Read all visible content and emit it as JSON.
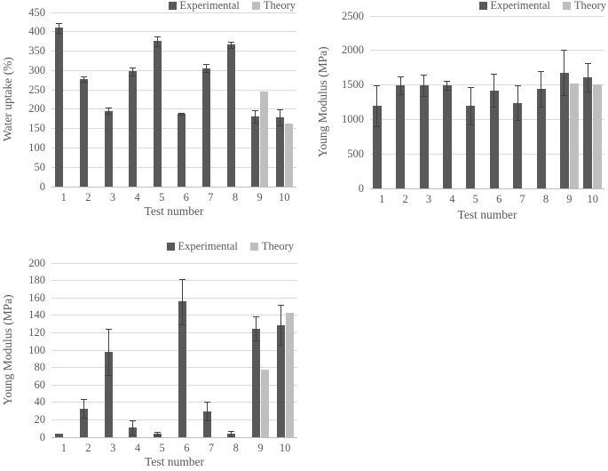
{
  "colors": {
    "experimental": "#595959",
    "theory": "#bfbfbf",
    "error_bar": "#404040",
    "gridline": "#d9d9d9",
    "axis_line": "#bfbfbf",
    "text": "#595959"
  },
  "chart_data": [
    {
      "type": "bar",
      "title": "",
      "xlabel": "Test number",
      "ylabel": "Water uptake (%)",
      "ylim": [
        0,
        450
      ],
      "ytick_step": 50,
      "grid": true,
      "legend_position": "top-right",
      "categories": [
        "1",
        "2",
        "3",
        "4",
        "5",
        "6",
        "7",
        "8",
        "9",
        "10"
      ],
      "series": [
        {
          "name": "Experimental",
          "values": [
            410,
            277,
            196,
            298,
            376,
            188,
            306,
            367,
            182,
            179
          ],
          "errors": [
            13,
            7,
            8,
            10,
            13,
            3,
            10,
            8,
            16,
            21
          ]
        },
        {
          "name": "Theory",
          "values": [
            null,
            null,
            null,
            null,
            null,
            null,
            null,
            null,
            245,
            163
          ]
        }
      ]
    },
    {
      "type": "bar",
      "title": "",
      "xlabel": "Test number",
      "ylabel": "Young Modulus (MPa)",
      "ylim": [
        0,
        2500
      ],
      "ytick_step": 500,
      "grid": true,
      "legend_position": "top-right",
      "categories": [
        "1",
        "2",
        "3",
        "4",
        "5",
        "6",
        "7",
        "8",
        "9",
        "10"
      ],
      "series": [
        {
          "name": "Experimental",
          "values": [
            1200,
            1500,
            1500,
            1500,
            1200,
            1420,
            1240,
            1440,
            1680,
            1610
          ],
          "errors": [
            300,
            130,
            155,
            65,
            275,
            240,
            250,
            255,
            330,
            210
          ]
        },
        {
          "name": "Theory",
          "values": [
            null,
            null,
            null,
            null,
            null,
            null,
            null,
            null,
            1520,
            1510
          ]
        }
      ]
    },
    {
      "type": "bar",
      "title": "",
      "xlabel": "Test number",
      "ylabel": "Young Modulus (MPa)",
      "ylim": [
        0,
        200
      ],
      "ytick_step": 20,
      "grid": true,
      "legend_position": "top-right",
      "categories": [
        "1",
        "2",
        "3",
        "4",
        "5",
        "6",
        "7",
        "8",
        "9",
        "10"
      ],
      "series": [
        {
          "name": "Experimental",
          "values": [
            4,
            33,
            98,
            11,
            4,
            156,
            30,
            4,
            125,
            129
          ],
          "errors": [
            0,
            11,
            27,
            8,
            2,
            26,
            11,
            3,
            14,
            23
          ]
        },
        {
          "name": "Theory",
          "values": [
            null,
            null,
            null,
            null,
            null,
            null,
            null,
            null,
            78,
            143
          ]
        }
      ]
    }
  ]
}
